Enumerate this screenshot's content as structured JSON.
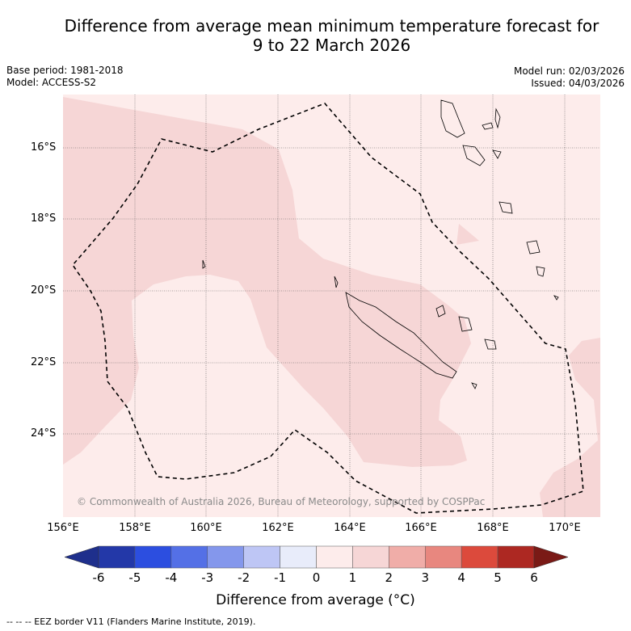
{
  "title": {
    "line1": "Difference from average mean minimum temperature forecast for",
    "line2": "9 to 22 March 2026"
  },
  "info": {
    "base_period": "Base period: 1981-2018",
    "model": "Model: ACCESS-S2",
    "model_run": "Model run: 02/03/2026",
    "issued": "Issued: 04/03/2026"
  },
  "latitudes": [
    "16°S",
    "18°S",
    "20°S",
    "22°S",
    "24°S"
  ],
  "longitudes": [
    "156°E",
    "158°E",
    "160°E",
    "162°E",
    "164°E",
    "166°E",
    "168°E",
    "170°E"
  ],
  "copyright": "© Commonwealth of Australia 2026, Bureau of Meteorology, supported by COSPPac",
  "colorbar": {
    "ticks": [
      "-6",
      "-5",
      "-4",
      "-3",
      "-2",
      "-1",
      "0",
      "1",
      "2",
      "3",
      "4",
      "5",
      "6"
    ],
    "colors": [
      "#2338a8",
      "#2c4ee0",
      "#5470e6",
      "#8497ec",
      "#bec6f5",
      "#e8ecfa",
      "#fdeceb",
      "#f6d6d6",
      "#f0ada8",
      "#e8877f",
      "#dc4a3c",
      "#ad2822"
    ],
    "low_extend_color": "#1e2f8c",
    "high_extend_color": "#7a1a16",
    "label": "Difference from average (°C)"
  },
  "map_colors": {
    "zero_to_one": "#fdeceb",
    "one_to_two": "#f6d6d6"
  },
  "legend_text": "--  --  -- EEZ border V11 (Flanders Marine Institute, 2019)."
}
